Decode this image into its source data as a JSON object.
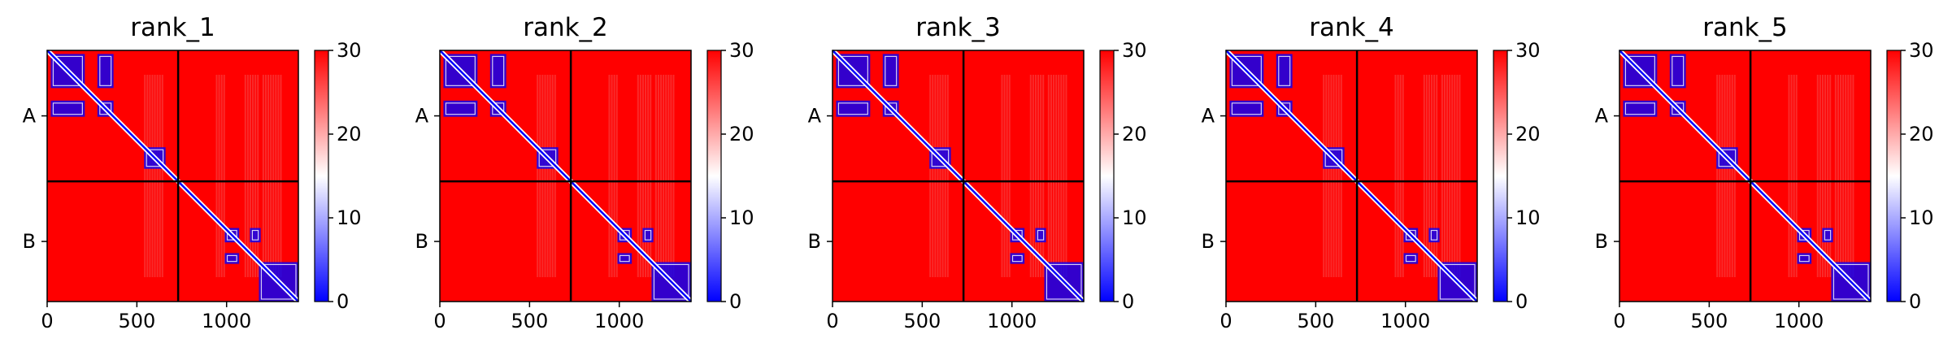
{
  "colors": {
    "high": "#ff0000",
    "mid": "#ffffff",
    "low": "#0000ff",
    "dim": "#f27a7a",
    "frame": "#000000"
  },
  "chart_data": [
    {
      "type": "heatmap",
      "title": "rank_1",
      "xlim": [
        0,
        1400
      ],
      "x_ticks": [
        "0",
        "500",
        "1000"
      ],
      "x_tick_values": [
        0,
        500,
        1000
      ],
      "chains": [
        {
          "label": "A",
          "start": 0,
          "end": 730
        },
        {
          "label": "B",
          "start": 730,
          "end": 1400
        }
      ],
      "colorbar": {
        "range": [
          0,
          30
        ],
        "ticks": [
          "0",
          "10",
          "20",
          "30"
        ],
        "tick_values": [
          0,
          10,
          20,
          30
        ]
      },
      "cmap": [
        "blue",
        "white",
        "red"
      ]
    },
    {
      "type": "heatmap",
      "title": "rank_2",
      "xlim": [
        0,
        1400
      ],
      "x_ticks": [
        "0",
        "500",
        "1000"
      ],
      "x_tick_values": [
        0,
        500,
        1000
      ],
      "chains": [
        {
          "label": "A",
          "start": 0,
          "end": 730
        },
        {
          "label": "B",
          "start": 730,
          "end": 1400
        }
      ],
      "colorbar": {
        "range": [
          0,
          30
        ],
        "ticks": [
          "0",
          "10",
          "20",
          "30"
        ],
        "tick_values": [
          0,
          10,
          20,
          30
        ]
      },
      "cmap": [
        "blue",
        "white",
        "red"
      ]
    },
    {
      "type": "heatmap",
      "title": "rank_3",
      "xlim": [
        0,
        1400
      ],
      "x_ticks": [
        "0",
        "500",
        "1000"
      ],
      "x_tick_values": [
        0,
        500,
        1000
      ],
      "chains": [
        {
          "label": "A",
          "start": 0,
          "end": 730
        },
        {
          "label": "B",
          "start": 730,
          "end": 1400
        }
      ],
      "colorbar": {
        "range": [
          0,
          30
        ],
        "ticks": [
          "0",
          "10",
          "20",
          "30"
        ],
        "tick_values": [
          0,
          10,
          20,
          30
        ]
      },
      "cmap": [
        "blue",
        "white",
        "red"
      ]
    },
    {
      "type": "heatmap",
      "title": "rank_4",
      "xlim": [
        0,
        1400
      ],
      "x_ticks": [
        "0",
        "500",
        "1000"
      ],
      "x_tick_values": [
        0,
        500,
        1000
      ],
      "chains": [
        {
          "label": "A",
          "start": 0,
          "end": 730
        },
        {
          "label": "B",
          "start": 730,
          "end": 1400
        }
      ],
      "colorbar": {
        "range": [
          0,
          30
        ],
        "ticks": [
          "0",
          "10",
          "20",
          "30"
        ],
        "tick_values": [
          0,
          10,
          20,
          30
        ]
      },
      "cmap": [
        "blue",
        "white",
        "red"
      ]
    },
    {
      "type": "heatmap",
      "title": "rank_5",
      "xlim": [
        0,
        1400
      ],
      "x_ticks": [
        "0",
        "500",
        "1000"
      ],
      "x_tick_values": [
        0,
        500,
        1000
      ],
      "chains": [
        {
          "label": "A",
          "start": 0,
          "end": 730
        },
        {
          "label": "B",
          "start": 730,
          "end": 1400
        }
      ],
      "colorbar": {
        "range": [
          0,
          30
        ],
        "ticks": [
          "0",
          "10",
          "20",
          "30"
        ],
        "tick_values": [
          0,
          10,
          20,
          30
        ]
      },
      "cmap": [
        "blue",
        "white",
        "red"
      ]
    }
  ]
}
